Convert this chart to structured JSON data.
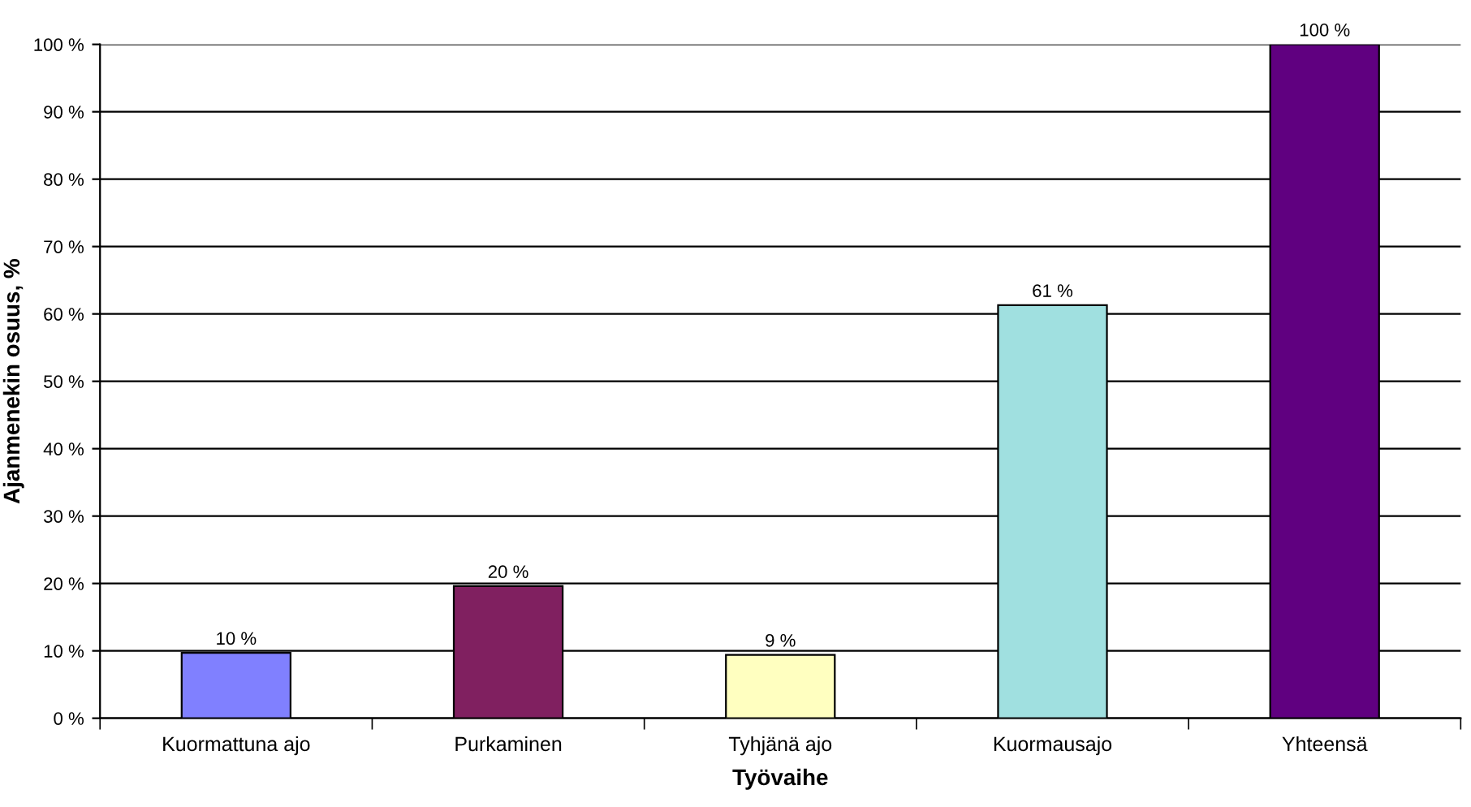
{
  "chart_data": {
    "type": "bar",
    "xlabel": "Työvaihe",
    "ylabel": "Ajanmenekin osuus, %",
    "categories": [
      "Kuormattuna ajo",
      "Purkaminen",
      "Tyhjänä ajo",
      "Kuormausajo",
      "Yhteensä"
    ],
    "values": [
      9.7,
      19.6,
      9.4,
      61.3,
      100
    ],
    "value_labels": [
      "10 %",
      "20 %",
      "9 %",
      "61 %",
      "100 %"
    ],
    "colors": [
      "#8080ff",
      "#802060",
      "#ffffc0",
      "#a0e0e0",
      "#600080"
    ],
    "ylim": [
      0,
      100
    ],
    "yticks": [
      {
        "value": 0,
        "label": "0 %"
      },
      {
        "value": 10,
        "label": "10 %"
      },
      {
        "value": 20,
        "label": "20 %"
      },
      {
        "value": 30,
        "label": "30 %"
      },
      {
        "value": 40,
        "label": "40 %"
      },
      {
        "value": 50,
        "label": "50 %"
      },
      {
        "value": 60,
        "label": "60 %"
      },
      {
        "value": 70,
        "label": "70 %"
      },
      {
        "value": 80,
        "label": "80 %"
      },
      {
        "value": 90,
        "label": "90 %"
      },
      {
        "value": 100,
        "label": "100 %"
      }
    ],
    "grid": "y"
  }
}
